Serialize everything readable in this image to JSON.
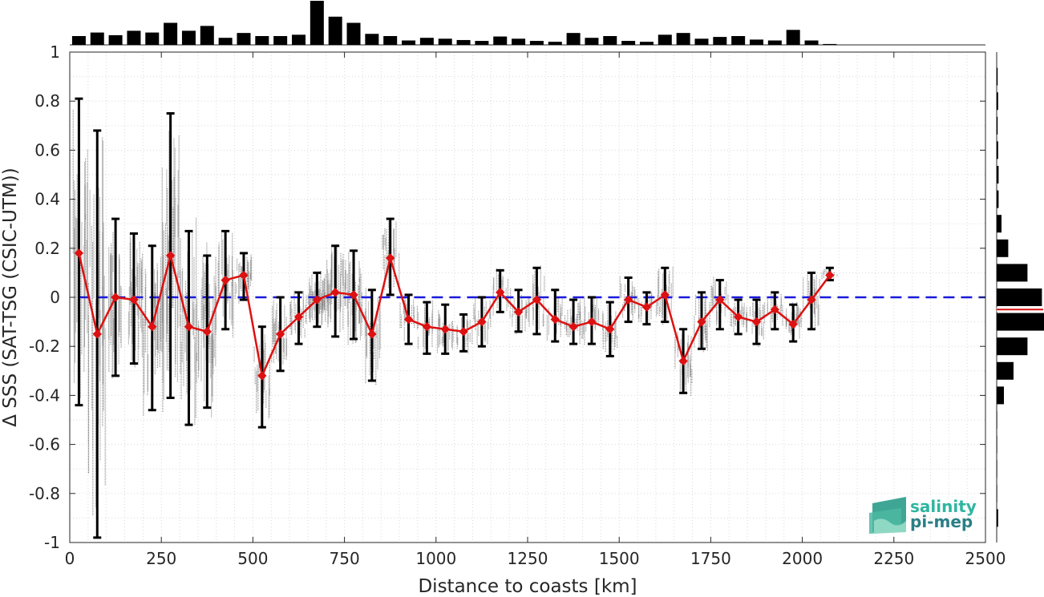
{
  "chart_data": {
    "type": "line",
    "title": "",
    "xlabel": "Distance to coasts [km]",
    "ylabel": "Δ SSS (SAT-TSG (CSIC-UTM))",
    "xlim": [
      0,
      2500
    ],
    "ylim": [
      -1,
      1
    ],
    "x_ticks": [
      "0",
      "250",
      "500",
      "750",
      "1000",
      "1250",
      "1500",
      "1750",
      "2000",
      "2250",
      "2500"
    ],
    "y_ticks": [
      "-1",
      "-0.8",
      "-0.6",
      "-0.4",
      "-0.2",
      "0",
      "0.2",
      "0.4",
      "0.6",
      "0.8",
      "1"
    ],
    "grid": true,
    "zero_line": {
      "y": 0,
      "style": "dashed",
      "color": "#1a1adb"
    },
    "series": [
      {
        "color": "#dd1111",
        "marker": "diamond",
        "x": [
          25,
          75,
          125,
          175,
          225,
          275,
          325,
          375,
          425,
          475,
          525,
          575,
          625,
          675,
          725,
          775,
          825,
          875,
          925,
          975,
          1025,
          1075,
          1125,
          1175,
          1225,
          1275,
          1325,
          1375,
          1425,
          1475,
          1525,
          1575,
          1625,
          1675,
          1725,
          1775,
          1825,
          1875,
          1925,
          1975,
          2025,
          2075
        ],
        "y": [
          0.18,
          -0.15,
          0.0,
          -0.01,
          -0.12,
          0.17,
          -0.12,
          -0.14,
          0.07,
          0.09,
          -0.32,
          -0.15,
          -0.08,
          -0.01,
          0.02,
          0.01,
          -0.15,
          0.16,
          -0.09,
          -0.12,
          -0.13,
          -0.14,
          -0.1,
          0.02,
          -0.06,
          -0.01,
          -0.09,
          -0.12,
          -0.1,
          -0.13,
          -0.01,
          -0.04,
          0.01,
          -0.26,
          -0.1,
          -0.01,
          -0.08,
          -0.1,
          -0.05,
          -0.11,
          -0.01,
          0.09
        ],
        "err_low": [
          -0.44,
          -0.98,
          -0.32,
          -0.27,
          -0.46,
          -0.41,
          -0.52,
          -0.45,
          -0.13,
          -0.01,
          -0.53,
          -0.3,
          -0.19,
          -0.12,
          -0.16,
          -0.17,
          -0.34,
          0.01,
          -0.19,
          -0.23,
          -0.23,
          -0.22,
          -0.2,
          -0.06,
          -0.14,
          -0.15,
          -0.18,
          -0.19,
          -0.19,
          -0.24,
          -0.1,
          -0.11,
          -0.1,
          -0.39,
          -0.21,
          -0.13,
          -0.15,
          -0.19,
          -0.13,
          -0.18,
          -0.13,
          0.07
        ],
        "err_high": [
          0.81,
          0.68,
          0.32,
          0.26,
          0.21,
          0.75,
          0.27,
          0.17,
          0.27,
          0.18,
          -0.12,
          0.0,
          0.02,
          0.1,
          0.21,
          0.19,
          0.03,
          0.32,
          0.01,
          -0.02,
          -0.03,
          -0.07,
          0.0,
          0.11,
          0.03,
          0.12,
          0.03,
          -0.01,
          0.0,
          -0.02,
          0.08,
          0.02,
          0.12,
          -0.13,
          0.02,
          0.07,
          -0.01,
          -0.01,
          0.02,
          -0.03,
          0.1,
          0.12
        ]
      }
    ],
    "scatter_color": "#808080",
    "top_histogram": {
      "bin_centers": [
        25,
        75,
        125,
        175,
        225,
        275,
        325,
        375,
        425,
        475,
        525,
        575,
        625,
        675,
        725,
        775,
        825,
        875,
        925,
        975,
        1025,
        1075,
        1125,
        1175,
        1225,
        1275,
        1325,
        1375,
        1425,
        1475,
        1525,
        1575,
        1625,
        1675,
        1725,
        1775,
        1825,
        1875,
        1925,
        1975,
        2025,
        2075
      ],
      "heights": [
        0.2,
        0.28,
        0.22,
        0.32,
        0.28,
        0.5,
        0.32,
        0.43,
        0.16,
        0.27,
        0.2,
        0.2,
        0.23,
        1.0,
        0.64,
        0.5,
        0.25,
        0.2,
        0.1,
        0.16,
        0.14,
        0.11,
        0.09,
        0.19,
        0.14,
        0.09,
        0.07,
        0.27,
        0.16,
        0.2,
        0.09,
        0.07,
        0.23,
        0.27,
        0.14,
        0.18,
        0.2,
        0.12,
        0.1,
        0.34,
        0.1,
        0.02
      ]
    },
    "right_histogram": {
      "bin_centers": [
        0.9,
        0.8,
        0.7,
        0.6,
        0.5,
        0.4,
        0.3,
        0.2,
        0.1,
        0.0,
        -0.1,
        -0.2,
        -0.3,
        -0.4,
        -0.5,
        -0.6,
        -0.7,
        -0.8,
        -0.9
      ],
      "heights": [
        0.02,
        0.03,
        0.02,
        0.03,
        0.04,
        0.04,
        0.1,
        0.24,
        0.64,
        0.94,
        1.0,
        0.64,
        0.35,
        0.15,
        0.01,
        0.01,
        0.01,
        0.01,
        0.03
      ],
      "mean": -0.05,
      "mean_color": "#dd1111"
    }
  },
  "logo": {
    "line1": "salinity",
    "line2": "pi-mep"
  }
}
